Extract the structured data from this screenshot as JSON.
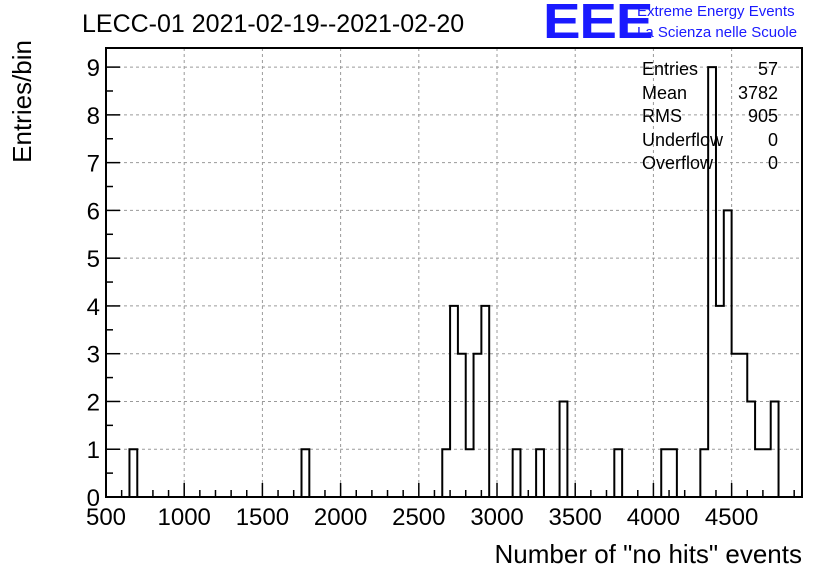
{
  "title": "LECC-01 2021-02-19--2021-02-20",
  "logo": {
    "mark": "EEE",
    "line1": "Extreme Energy Events",
    "line2": "La Scienza nelle Scuole",
    "color": "#1a1aff"
  },
  "stats": [
    {
      "key": "Entries",
      "value": "57"
    },
    {
      "key": "Mean",
      "value": "3782"
    },
    {
      "key": "RMS",
      "value": "905"
    },
    {
      "key": "Underflow",
      "value": "0"
    },
    {
      "key": "Overflow",
      "value": "0"
    }
  ],
  "chart_data": {
    "type": "bar",
    "style": "histogram-step",
    "xlabel": "Number of \"no hits\" events",
    "ylabel": "Entries/bin",
    "xlim": [
      500,
      4950
    ],
    "ylim": [
      0,
      9.4
    ],
    "bin_width": 50,
    "x_ticks": [
      500,
      1000,
      1500,
      2000,
      2500,
      3000,
      3500,
      4000,
      4500
    ],
    "y_ticks": [
      0,
      1,
      2,
      3,
      4,
      5,
      6,
      7,
      8,
      9
    ],
    "grid": true,
    "bins": [
      {
        "x": 650,
        "count": 1
      },
      {
        "x": 1750,
        "count": 1
      },
      {
        "x": 2650,
        "count": 1
      },
      {
        "x": 2700,
        "count": 4
      },
      {
        "x": 2750,
        "count": 3
      },
      {
        "x": 2800,
        "count": 1
      },
      {
        "x": 2850,
        "count": 3
      },
      {
        "x": 2900,
        "count": 4
      },
      {
        "x": 3100,
        "count": 1
      },
      {
        "x": 3250,
        "count": 1
      },
      {
        "x": 3400,
        "count": 2
      },
      {
        "x": 3750,
        "count": 1
      },
      {
        "x": 4050,
        "count": 1
      },
      {
        "x": 4100,
        "count": 1
      },
      {
        "x": 4300,
        "count": 1
      },
      {
        "x": 4350,
        "count": 9
      },
      {
        "x": 4400,
        "count": 4
      },
      {
        "x": 4450,
        "count": 6
      },
      {
        "x": 4500,
        "count": 3
      },
      {
        "x": 4550,
        "count": 3
      },
      {
        "x": 4600,
        "count": 2
      },
      {
        "x": 4650,
        "count": 1
      },
      {
        "x": 4700,
        "count": 1
      },
      {
        "x": 4750,
        "count": 2
      }
    ]
  }
}
